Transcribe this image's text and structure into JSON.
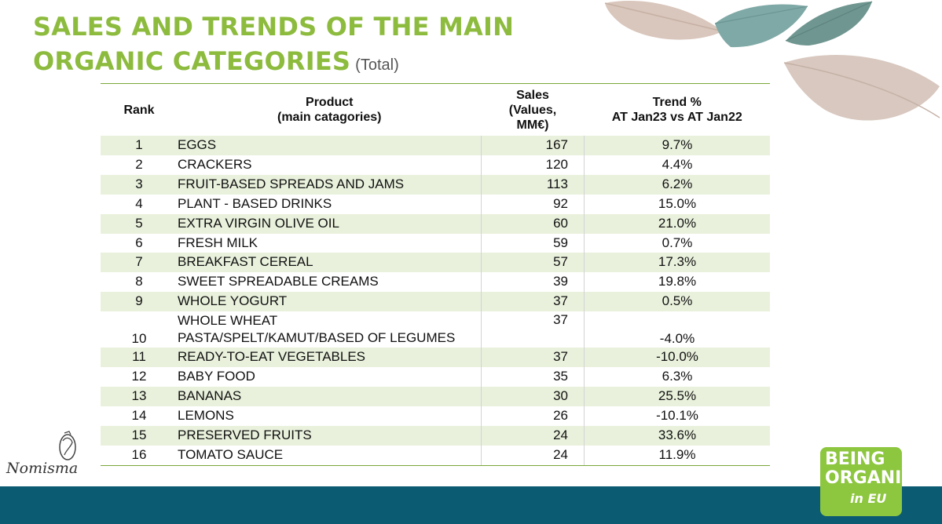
{
  "header": {
    "title_line1": "SALES AND TRENDS OF THE MAIN",
    "title_line2": "ORGANIC CATEGORIES",
    "title_sub": "(Total)"
  },
  "table": {
    "headers": {
      "rank": "Rank",
      "product_line1": "Product",
      "product_line2": "(main catagories)",
      "sales_line1": "Sales",
      "sales_line2": "(Values,",
      "sales_line3": "MM€)",
      "trend_line1": "Trend %",
      "trend_line2": "AT Jan23 vs AT Jan22"
    },
    "rows": [
      {
        "rank": "1",
        "product": "EGGS",
        "sales": "167",
        "trend": "9.7%"
      },
      {
        "rank": "2",
        "product": "CRACKERS",
        "sales": "120",
        "trend": "4.4%"
      },
      {
        "rank": "3",
        "product": "FRUIT-BASED SPREADS AND JAMS",
        "sales": "113",
        "trend": "6.2%"
      },
      {
        "rank": "4",
        "product": "PLANT - BASED DRINKS",
        "sales": "92",
        "trend": "15.0%"
      },
      {
        "rank": "5",
        "product": "EXTRA VIRGIN OLIVE OIL",
        "sales": "60",
        "trend": "21.0%"
      },
      {
        "rank": "6",
        "product": "FRESH MILK",
        "sales": "59",
        "trend": "0.7%"
      },
      {
        "rank": "7",
        "product": "BREAKFAST CEREAL",
        "sales": "57",
        "trend": "17.3%"
      },
      {
        "rank": "8",
        "product": "SWEET SPREADABLE CREAMS",
        "sales": "39",
        "trend": "19.8%"
      },
      {
        "rank": "9",
        "product": "WHOLE YOGURT",
        "sales": "37",
        "trend": "0.5%"
      },
      {
        "rank": "10",
        "product_line1": "WHOLE WHEAT",
        "product_line2": "PASTA/SPELT/KAMUT/BASED OF LEGUMES",
        "sales": "37",
        "trend": "-4.0%"
      },
      {
        "rank": "11",
        "product": "READY-TO-EAT VEGETABLES",
        "sales": "37",
        "trend": "-10.0%"
      },
      {
        "rank": "12",
        "product": "BABY FOOD",
        "sales": "35",
        "trend": "6.3%"
      },
      {
        "rank": "13",
        "product": "BANANAS",
        "sales": "30",
        "trend": "25.5%"
      },
      {
        "rank": "14",
        "product": "LEMONS",
        "sales": "26",
        "trend": "-10.1%"
      },
      {
        "rank": "15",
        "product": "PRESERVED FRUITS",
        "sales": "24",
        "trend": "33.6%"
      },
      {
        "rank": "16",
        "product": "TOMATO SAUCE",
        "sales": "24",
        "trend": "11.9%"
      }
    ]
  },
  "logos": {
    "nomisma": "Nomisma",
    "being_line1": "BEING",
    "being_line2": "ORGANIC",
    "being_line3": "in EU"
  },
  "colors": {
    "title_green": "#8dbb3e",
    "row_band": "#e9f1dc",
    "bottom_bar": "#0b5b73",
    "logo_green": "#8dc63f"
  }
}
